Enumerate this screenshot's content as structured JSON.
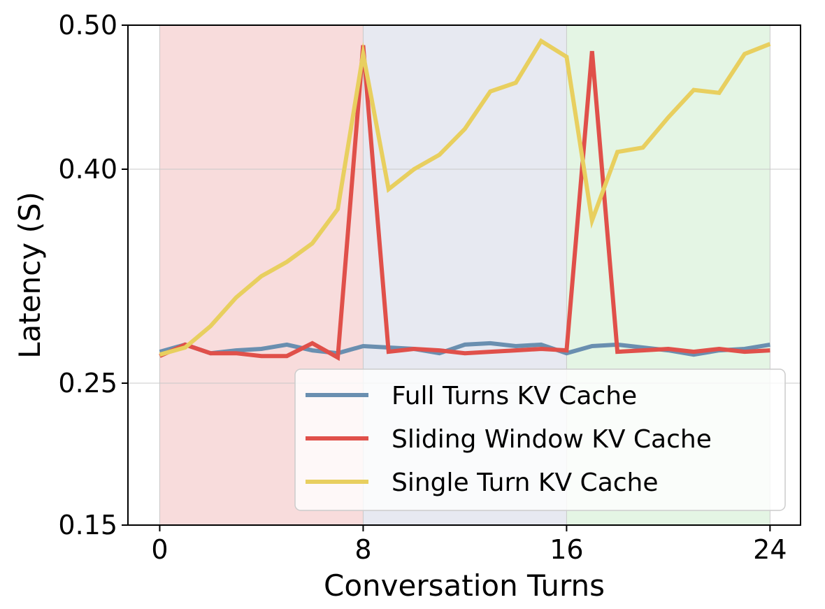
{
  "chart_data": {
    "type": "line",
    "xlabel": "Conversation Turns",
    "ylabel": "Latency (S)",
    "xlim": [
      -1.25,
      25.2
    ],
    "ylim": [
      0.15,
      0.5
    ],
    "x_ticks": [
      0,
      8,
      16,
      24
    ],
    "x_tick_labels": [
      "0",
      "8",
      "16",
      "24"
    ],
    "y_ticks": [
      0.15,
      0.25,
      0.4,
      0.5
    ],
    "y_tick_labels": [
      "0.15",
      "0.25",
      "0.40",
      "0.50"
    ],
    "grid": true,
    "legend_position": "lower-right",
    "background_bands": [
      {
        "x_start": 0,
        "x_end": 8,
        "color": "#f8dcdc"
      },
      {
        "x_start": 8,
        "x_end": 16,
        "color": "#e7e9f1"
      },
      {
        "x_start": 16,
        "x_end": 24,
        "color": "#e4f5e4"
      }
    ],
    "x": [
      0,
      1,
      2,
      3,
      4,
      5,
      6,
      7,
      8,
      9,
      10,
      11,
      12,
      13,
      14,
      15,
      16,
      17,
      18,
      19,
      20,
      21,
      22,
      23,
      24
    ],
    "series": [
      {
        "name": "Full Turns KV Cache",
        "color": "#6a8fb0",
        "values": [
          0.272,
          0.277,
          0.271,
          0.273,
          0.274,
          0.277,
          0.273,
          0.271,
          0.276,
          0.275,
          0.274,
          0.271,
          0.277,
          0.278,
          0.276,
          0.277,
          0.271,
          0.276,
          0.277,
          0.275,
          0.273,
          0.27,
          0.273,
          0.274,
          0.277
        ]
      },
      {
        "name": "Sliding Window KV Cache",
        "color": "#e0504a",
        "values": [
          0.269,
          0.277,
          0.271,
          0.271,
          0.269,
          0.269,
          0.278,
          0.268,
          0.486,
          0.272,
          0.274,
          0.273,
          0.271,
          0.272,
          0.273,
          0.274,
          0.273,
          0.482,
          0.272,
          0.273,
          0.274,
          0.272,
          0.274,
          0.272,
          0.273
        ]
      },
      {
        "name": "Single Turn KV Cache",
        "color": "#e8cf5f",
        "values": [
          0.27,
          0.275,
          0.29,
          0.31,
          0.325,
          0.335,
          0.348,
          0.372,
          0.48,
          0.386,
          0.4,
          0.41,
          0.428,
          0.454,
          0.46,
          0.489,
          0.478,
          0.364,
          0.412,
          0.415,
          0.436,
          0.455,
          0.453,
          0.48,
          0.487
        ]
      }
    ]
  }
}
